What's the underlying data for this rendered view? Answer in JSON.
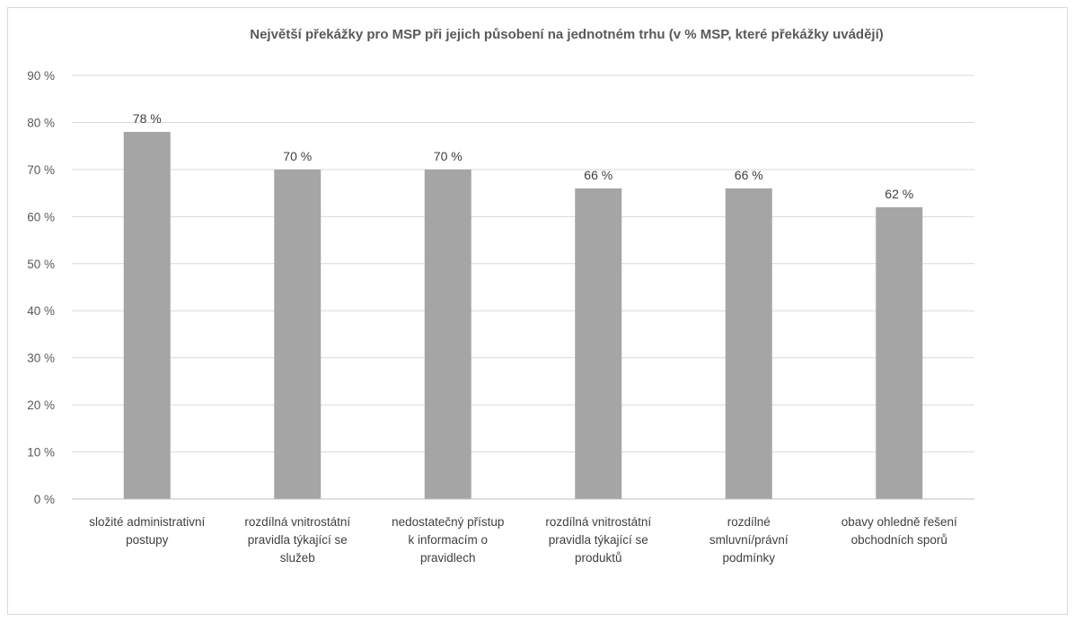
{
  "chart_data": {
    "type": "bar",
    "title": "Největší překážky pro MSP při jejich působení na jednotném trhu (v % MSP, které překážky uvádějí)",
    "xlabel": "",
    "ylabel": "",
    "ylim": [
      0,
      90
    ],
    "y_ticks": [
      "0 %",
      "10 %",
      "20 %",
      "30 %",
      "40 %",
      "50 %",
      "60 %",
      "70 %",
      "80 %",
      "90 %"
    ],
    "categories": [
      [
        "složité administrativní",
        "postupy"
      ],
      [
        "rozdílná vnitrostátní",
        "pravidla týkající se",
        "služeb"
      ],
      [
        "nedostatečný přístup",
        "k informacím o",
        "pravidlech"
      ],
      [
        "rozdílná vnitrostátní",
        "pravidla týkající se",
        "produktů"
      ],
      [
        "rozdílné",
        "smluvní/právní",
        "podmínky"
      ],
      [
        "obavy ohledně řešení",
        "obchodních sporů"
      ]
    ],
    "values": [
      78,
      70,
      70,
      66,
      66,
      62
    ],
    "data_labels": [
      "78 %",
      "70 %",
      "70 %",
      "66 %",
      "66 %",
      "62 %"
    ],
    "grid": true,
    "legend": "none",
    "colors": {
      "bar": "#a5a5a5",
      "grid": "#d9d9d9",
      "text": "#595959"
    }
  }
}
